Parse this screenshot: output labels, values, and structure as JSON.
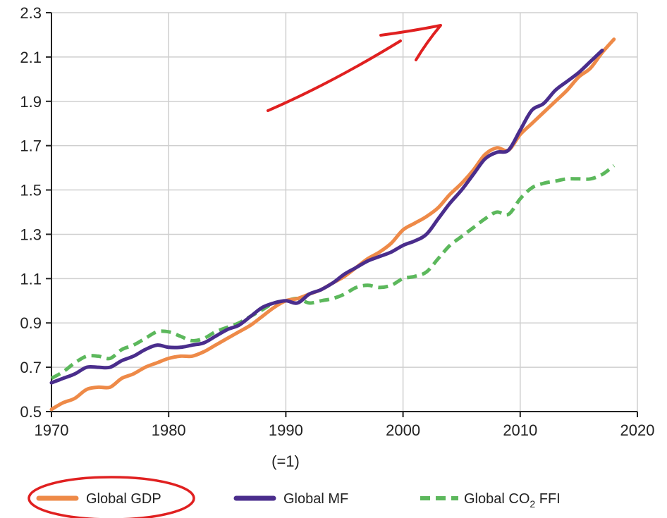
{
  "chart_data": {
    "type": "line",
    "xlim": [
      1970,
      2020
    ],
    "ylim": [
      0.5,
      2.3
    ],
    "x_ticks": [
      1970,
      1980,
      1990,
      2000,
      2010,
      2020
    ],
    "y_ticks": [
      0.5,
      0.7,
      0.9,
      1.1,
      1.3,
      1.5,
      1.7,
      1.9,
      2.1,
      2.3
    ],
    "x_tick_labels": [
      "1970",
      "1980",
      "1990",
      "2000",
      "2010",
      "2020"
    ],
    "y_tick_labels": [
      "0.5",
      "0.7",
      "0.9",
      "1.1",
      "1.3",
      "1.5",
      "1.7",
      "1.9",
      "2.1",
      "2.3"
    ],
    "x_note": "(=1)",
    "grid": true,
    "legend_position": "bottom",
    "series": [
      {
        "name": "Global GDP",
        "color": "#ee8a48",
        "style": "solid",
        "points": [
          [
            1970,
            0.51
          ],
          [
            1971,
            0.54
          ],
          [
            1972,
            0.56
          ],
          [
            1973,
            0.6
          ],
          [
            1974,
            0.61
          ],
          [
            1975,
            0.61
          ],
          [
            1976,
            0.65
          ],
          [
            1977,
            0.67
          ],
          [
            1978,
            0.7
          ],
          [
            1979,
            0.72
          ],
          [
            1980,
            0.74
          ],
          [
            1981,
            0.75
          ],
          [
            1982,
            0.75
          ],
          [
            1983,
            0.77
          ],
          [
            1984,
            0.8
          ],
          [
            1985,
            0.83
          ],
          [
            1986,
            0.86
          ],
          [
            1987,
            0.89
          ],
          [
            1988,
            0.93
          ],
          [
            1989,
            0.97
          ],
          [
            1990,
            1.0
          ],
          [
            1991,
            1.01
          ],
          [
            1992,
            1.03
          ],
          [
            1993,
            1.05
          ],
          [
            1994,
            1.08
          ],
          [
            1995,
            1.11
          ],
          [
            1996,
            1.15
          ],
          [
            1997,
            1.19
          ],
          [
            1998,
            1.22
          ],
          [
            1999,
            1.26
          ],
          [
            2000,
            1.32
          ],
          [
            2001,
            1.35
          ],
          [
            2002,
            1.38
          ],
          [
            2003,
            1.42
          ],
          [
            2004,
            1.48
          ],
          [
            2005,
            1.53
          ],
          [
            2006,
            1.59
          ],
          [
            2007,
            1.66
          ],
          [
            2008,
            1.69
          ],
          [
            2009,
            1.68
          ],
          [
            2010,
            1.75
          ],
          [
            2011,
            1.8
          ],
          [
            2012,
            1.85
          ],
          [
            2013,
            1.9
          ],
          [
            2014,
            1.95
          ],
          [
            2015,
            2.01
          ],
          [
            2016,
            2.05
          ],
          [
            2017,
            2.12
          ],
          [
            2018,
            2.18
          ]
        ]
      },
      {
        "name": "Global MF",
        "color": "#4a2d8c",
        "style": "solid",
        "points": [
          [
            1970,
            0.63
          ],
          [
            1971,
            0.65
          ],
          [
            1972,
            0.67
          ],
          [
            1973,
            0.7
          ],
          [
            1974,
            0.7
          ],
          [
            1975,
            0.7
          ],
          [
            1976,
            0.73
          ],
          [
            1977,
            0.75
          ],
          [
            1978,
            0.78
          ],
          [
            1979,
            0.8
          ],
          [
            1980,
            0.79
          ],
          [
            1981,
            0.79
          ],
          [
            1982,
            0.8
          ],
          [
            1983,
            0.81
          ],
          [
            1984,
            0.84
          ],
          [
            1985,
            0.87
          ],
          [
            1986,
            0.89
          ],
          [
            1987,
            0.93
          ],
          [
            1988,
            0.97
          ],
          [
            1989,
            0.99
          ],
          [
            1990,
            1.0
          ],
          [
            1991,
            0.99
          ],
          [
            1992,
            1.03
          ],
          [
            1993,
            1.05
          ],
          [
            1994,
            1.08
          ],
          [
            1995,
            1.12
          ],
          [
            1996,
            1.15
          ],
          [
            1997,
            1.18
          ],
          [
            1998,
            1.2
          ],
          [
            1999,
            1.22
          ],
          [
            2000,
            1.25
          ],
          [
            2001,
            1.27
          ],
          [
            2002,
            1.3
          ],
          [
            2003,
            1.37
          ],
          [
            2004,
            1.44
          ],
          [
            2005,
            1.5
          ],
          [
            2006,
            1.57
          ],
          [
            2007,
            1.64
          ],
          [
            2008,
            1.67
          ],
          [
            2009,
            1.68
          ],
          [
            2010,
            1.77
          ],
          [
            2011,
            1.86
          ],
          [
            2012,
            1.89
          ],
          [
            2013,
            1.95
          ],
          [
            2014,
            1.99
          ],
          [
            2015,
            2.03
          ],
          [
            2016,
            2.08
          ],
          [
            2017,
            2.13
          ]
        ]
      },
      {
        "name": "Global CO₂ FFI",
        "color": "#5cb85c",
        "style": "dashed",
        "points": [
          [
            1970,
            0.65
          ],
          [
            1971,
            0.68
          ],
          [
            1972,
            0.72
          ],
          [
            1973,
            0.75
          ],
          [
            1974,
            0.75
          ],
          [
            1975,
            0.74
          ],
          [
            1976,
            0.78
          ],
          [
            1977,
            0.8
          ],
          [
            1978,
            0.83
          ],
          [
            1979,
            0.86
          ],
          [
            1980,
            0.86
          ],
          [
            1981,
            0.84
          ],
          [
            1982,
            0.82
          ],
          [
            1983,
            0.83
          ],
          [
            1984,
            0.86
          ],
          [
            1985,
            0.88
          ],
          [
            1986,
            0.9
          ],
          [
            1987,
            0.93
          ],
          [
            1988,
            0.96
          ],
          [
            1989,
            0.99
          ],
          [
            1990,
            1.0
          ],
          [
            1991,
            1.01
          ],
          [
            1992,
            0.99
          ],
          [
            1993,
            1.0
          ],
          [
            1994,
            1.01
          ],
          [
            1995,
            1.03
          ],
          [
            1996,
            1.06
          ],
          [
            1997,
            1.07
          ],
          [
            1998,
            1.06
          ],
          [
            1999,
            1.07
          ],
          [
            2000,
            1.1
          ],
          [
            2001,
            1.11
          ],
          [
            2002,
            1.13
          ],
          [
            2003,
            1.19
          ],
          [
            2004,
            1.25
          ],
          [
            2005,
            1.29
          ],
          [
            2006,
            1.33
          ],
          [
            2007,
            1.37
          ],
          [
            2008,
            1.4
          ],
          [
            2009,
            1.39
          ],
          [
            2010,
            1.46
          ],
          [
            2011,
            1.51
          ],
          [
            2012,
            1.53
          ],
          [
            2013,
            1.54
          ],
          [
            2014,
            1.55
          ],
          [
            2015,
            1.55
          ],
          [
            2016,
            1.55
          ],
          [
            2017,
            1.57
          ],
          [
            2018,
            1.61
          ]
        ]
      }
    ]
  },
  "legend": {
    "gdp_label": "Global GDP",
    "mf_label": "Global MF",
    "co2_label_prefix": "Global CO",
    "co2_label_subscript": "2",
    "co2_label_suffix": " FFI"
  },
  "annotations": {
    "arrow_color": "#e02020",
    "circle_color": "#e02020"
  }
}
